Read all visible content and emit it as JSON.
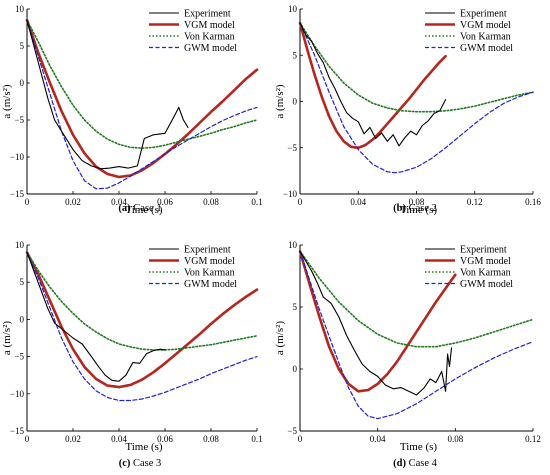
{
  "legend_labels": [
    "Experiment",
    "VGM model",
    "Von Karman",
    "GWM model"
  ],
  "series_colors": {
    "Experiment": "#000000",
    "VGM model": "#b5261e",
    "Von Karman": "#1f7a1f",
    "GWM model": "#1f1fd6"
  },
  "chart_data": [
    {
      "type": "line",
      "panel_label": "(a)",
      "caption": "Case 1",
      "xlabel": "Time (s)",
      "ylabel": "a (m/s²)",
      "xlim": [
        0,
        0.1
      ],
      "ylim": [
        -15,
        10
      ],
      "xticks": [
        0,
        0.02,
        0.04,
        0.06,
        0.08,
        0.1
      ],
      "xtick_labels": [
        "0",
        "0.02",
        "0.04",
        "0.06",
        "0.08",
        "0.1"
      ],
      "yticks": [
        -15,
        -10,
        -5,
        0,
        5,
        10
      ],
      "ytick_labels": [
        "−15",
        "−10",
        "−5",
        "0",
        "5",
        "10"
      ],
      "legend": "top-right",
      "series": [
        {
          "name": "Experiment",
          "style": "solid",
          "x": [
            0,
            0.003,
            0.006,
            0.009,
            0.012,
            0.016,
            0.02,
            0.024,
            0.028,
            0.032,
            0.036,
            0.04,
            0.044,
            0.048,
            0.051,
            0.055,
            0.06,
            0.064,
            0.066,
            0.068,
            0.07
          ],
          "y": [
            8.5,
            5,
            1.5,
            -2,
            -5,
            -7,
            -9,
            -10.5,
            -11.2,
            -11.6,
            -11.5,
            -11.3,
            -11.5,
            -11.2,
            -7.5,
            -7,
            -6.8,
            -4.5,
            -3.3,
            -5,
            -6
          ]
        },
        {
          "name": "VGM model",
          "style": "solid-thick",
          "x": [
            0,
            0.005,
            0.01,
            0.015,
            0.02,
            0.025,
            0.03,
            0.035,
            0.04,
            0.045,
            0.05,
            0.055,
            0.06,
            0.065,
            0.07,
            0.075,
            0.08,
            0.085,
            0.09,
            0.095,
            0.1
          ],
          "y": [
            8.5,
            4,
            0,
            -3.8,
            -7,
            -9.5,
            -11.3,
            -12.3,
            -12.7,
            -12.5,
            -11.8,
            -10.8,
            -9.6,
            -8.3,
            -6.9,
            -5.4,
            -3.9,
            -2.5,
            -1,
            0.5,
            1.8
          ]
        },
        {
          "name": "Von Karman",
          "style": "dotted",
          "x": [
            0,
            0.005,
            0.01,
            0.015,
            0.02,
            0.025,
            0.03,
            0.035,
            0.04,
            0.045,
            0.05,
            0.055,
            0.06,
            0.065,
            0.07,
            0.075,
            0.08,
            0.085,
            0.09,
            0.095,
            0.1
          ],
          "y": [
            8.5,
            5.5,
            2.3,
            -0.5,
            -3,
            -5,
            -6.5,
            -7.6,
            -8.3,
            -8.7,
            -8.8,
            -8.7,
            -8.4,
            -8,
            -7.6,
            -7.2,
            -6.8,
            -6.3,
            -5.9,
            -5.4,
            -5
          ]
        },
        {
          "name": "GWM model",
          "style": "dashed",
          "x": [
            0,
            0.005,
            0.01,
            0.015,
            0.02,
            0.025,
            0.03,
            0.035,
            0.04,
            0.045,
            0.05,
            0.055,
            0.06,
            0.065,
            0.07,
            0.075,
            0.08,
            0.085,
            0.09,
            0.095,
            0.1
          ],
          "y": [
            8.5,
            3.5,
            -1.5,
            -6.5,
            -10.5,
            -13.2,
            -14.3,
            -14.2,
            -13.5,
            -12.6,
            -11.6,
            -10.6,
            -9.6,
            -8.6,
            -7.7,
            -6.8,
            -5.9,
            -5.1,
            -4.4,
            -3.8,
            -3.3
          ]
        }
      ]
    },
    {
      "type": "line",
      "panel_label": "(b)",
      "caption": "Case 2",
      "xlabel": "Time (s)",
      "ylabel": "a (m/s²)",
      "xlim": [
        0,
        0.16
      ],
      "ylim": [
        -10,
        10
      ],
      "xticks": [
        0,
        0.04,
        0.08,
        0.12,
        0.16
      ],
      "xtick_labels": [
        "0",
        "0.04",
        "0.08",
        "0.12",
        "0.16"
      ],
      "yticks": [
        -10,
        -5,
        0,
        5,
        10
      ],
      "ytick_labels": [
        "−10",
        "−5",
        "0",
        "5",
        "10"
      ],
      "legend": "top-right",
      "series": [
        {
          "name": "Experiment",
          "style": "solid",
          "x": [
            0,
            0.004,
            0.008,
            0.012,
            0.016,
            0.02,
            0.024,
            0.028,
            0.032,
            0.036,
            0.04,
            0.044,
            0.048,
            0.052,
            0.056,
            0.06,
            0.064,
            0.068,
            0.072,
            0.076,
            0.08,
            0.084,
            0.088,
            0.092,
            0.096,
            0.1
          ],
          "y": [
            8.5,
            7.2,
            6.5,
            5.2,
            4.2,
            2.6,
            1.4,
            0,
            -1.2,
            -1.8,
            -2.2,
            -3.5,
            -2.8,
            -4,
            -3.4,
            -4.3,
            -3.6,
            -4.8,
            -3.9,
            -3.2,
            -3.6,
            -2.6,
            -2.1,
            -1.3,
            -1,
            0.2
          ]
        },
        {
          "name": "VGM model",
          "style": "solid-thick",
          "x": [
            0,
            0.005,
            0.01,
            0.015,
            0.02,
            0.025,
            0.03,
            0.035,
            0.04,
            0.045,
            0.05,
            0.055,
            0.06,
            0.065,
            0.07,
            0.075,
            0.08,
            0.085,
            0.09,
            0.095,
            0.1
          ],
          "y": [
            8.5,
            5.6,
            2.9,
            0.5,
            -1.6,
            -3.2,
            -4.3,
            -4.9,
            -5,
            -4.7,
            -4.1,
            -3.3,
            -2.4,
            -1.5,
            -0.6,
            0.3,
            1.3,
            2.3,
            3.2,
            4.1,
            4.9
          ]
        },
        {
          "name": "Von Karman",
          "style": "dotted",
          "x": [
            0,
            0.01,
            0.02,
            0.03,
            0.04,
            0.05,
            0.06,
            0.07,
            0.08,
            0.09,
            0.1,
            0.11,
            0.12,
            0.13,
            0.14,
            0.15,
            0.16
          ],
          "y": [
            8.5,
            6,
            3.8,
            2,
            0.7,
            -0.2,
            -0.7,
            -1,
            -1.1,
            -1.1,
            -1,
            -0.8,
            -0.5,
            -0.1,
            0.3,
            0.7,
            1
          ]
        },
        {
          "name": "GWM model",
          "style": "dashed",
          "x": [
            0,
            0.01,
            0.02,
            0.03,
            0.04,
            0.05,
            0.06,
            0.065,
            0.07,
            0.08,
            0.09,
            0.1,
            0.11,
            0.12,
            0.13,
            0.14,
            0.15,
            0.16
          ],
          "y": [
            8.5,
            5,
            1,
            -2.7,
            -5.2,
            -6.8,
            -7.6,
            -7.7,
            -7.6,
            -7.1,
            -6.2,
            -5,
            -3.7,
            -2.4,
            -1.2,
            -0.2,
            0.5,
            1
          ]
        }
      ]
    },
    {
      "type": "line",
      "panel_label": "(c)",
      "caption": "Case 3",
      "xlabel": "Time (s)",
      "ylabel": "a (m/s²)",
      "xlim": [
        0,
        0.1
      ],
      "ylim": [
        -15,
        10
      ],
      "xticks": [
        0,
        0.02,
        0.04,
        0.06,
        0.08,
        0.1
      ],
      "xtick_labels": [
        "0",
        "0.02",
        "0.04",
        "0.06",
        "0.08",
        "0.1"
      ],
      "yticks": [
        -15,
        -10,
        -5,
        0,
        5,
        10
      ],
      "ytick_labels": [
        "−15",
        "−10",
        "−5",
        "0",
        "5",
        "10"
      ],
      "legend": "top-right",
      "series": [
        {
          "name": "Experiment",
          "style": "solid",
          "x": [
            0,
            0.003,
            0.006,
            0.009,
            0.012,
            0.016,
            0.02,
            0.024,
            0.028,
            0.031,
            0.034,
            0.037,
            0.04,
            0.043,
            0.046,
            0.049,
            0.052,
            0.055,
            0.058,
            0.06
          ],
          "y": [
            9,
            6.5,
            4,
            1.5,
            -0.5,
            -1.5,
            -2.5,
            -3.3,
            -5,
            -6.3,
            -7.5,
            -8.2,
            -8.3,
            -7.5,
            -5.8,
            -5.9,
            -4.6,
            -4.2,
            -4,
            -4.1
          ]
        },
        {
          "name": "VGM model",
          "style": "solid-thick",
          "x": [
            0,
            0.005,
            0.01,
            0.015,
            0.02,
            0.025,
            0.03,
            0.035,
            0.04,
            0.045,
            0.05,
            0.055,
            0.06,
            0.065,
            0.07,
            0.075,
            0.08,
            0.085,
            0.09,
            0.095,
            0.1
          ],
          "y": [
            9,
            6,
            2.5,
            -1,
            -4,
            -6.4,
            -8,
            -8.9,
            -9.1,
            -8.8,
            -8.1,
            -7.1,
            -5.9,
            -4.6,
            -3.3,
            -2,
            -0.6,
            0.7,
            1.9,
            3,
            4
          ]
        },
        {
          "name": "Von Karman",
          "style": "dotted",
          "x": [
            0,
            0.005,
            0.01,
            0.015,
            0.02,
            0.025,
            0.03,
            0.035,
            0.04,
            0.045,
            0.05,
            0.055,
            0.06,
            0.065,
            0.07,
            0.075,
            0.08,
            0.085,
            0.09,
            0.095,
            0.1
          ],
          "y": [
            9,
            6.5,
            4.3,
            2.4,
            0.8,
            -0.6,
            -1.7,
            -2.6,
            -3.3,
            -3.7,
            -4,
            -4.1,
            -4.1,
            -4,
            -3.8,
            -3.6,
            -3.4,
            -3.1,
            -2.8,
            -2.5,
            -2.2
          ]
        },
        {
          "name": "GWM model",
          "style": "dashed",
          "x": [
            0,
            0.005,
            0.01,
            0.015,
            0.02,
            0.025,
            0.03,
            0.035,
            0.04,
            0.045,
            0.05,
            0.055,
            0.06,
            0.065,
            0.07,
            0.075,
            0.08,
            0.085,
            0.09,
            0.095,
            0.1
          ],
          "y": [
            9,
            5.5,
            1.5,
            -2.5,
            -5.7,
            -8,
            -9.6,
            -10.5,
            -10.9,
            -10.9,
            -10.7,
            -10.3,
            -9.8,
            -9.2,
            -8.6,
            -8,
            -7.3,
            -6.7,
            -6.1,
            -5.5,
            -5
          ]
        }
      ]
    },
    {
      "type": "line",
      "panel_label": "(d)",
      "caption": "Case 4",
      "xlabel": "Time (s)",
      "ylabel": "a (m/s²)",
      "xlim": [
        0,
        0.12
      ],
      "ylim": [
        -5,
        10
      ],
      "xticks": [
        0,
        0.04,
        0.08,
        0.12
      ],
      "xtick_labels": [
        "0",
        "0.04",
        "0.08",
        "0.12"
      ],
      "yticks": [
        -5,
        0,
        5,
        10
      ],
      "ytick_labels": [
        "−5",
        "0",
        "5",
        "10"
      ],
      "legend": "top-right",
      "series": [
        {
          "name": "Experiment",
          "style": "solid",
          "x": [
            0,
            0.003,
            0.006,
            0.009,
            0.012,
            0.016,
            0.02,
            0.024,
            0.028,
            0.032,
            0.036,
            0.04,
            0.044,
            0.048,
            0.052,
            0.056,
            0.06,
            0.064,
            0.067,
            0.07,
            0.073,
            0.075,
            0.076,
            0.077,
            0.078
          ],
          "y": [
            9.5,
            8.7,
            7.9,
            6.9,
            5.8,
            5.3,
            4.2,
            2.7,
            1.5,
            0.4,
            -0.2,
            -0.6,
            -1.3,
            -1.6,
            -1.5,
            -1.8,
            -2.1,
            -1.5,
            -0.8,
            -1.1,
            -0.2,
            -1.8,
            1.2,
            0.2,
            1.7
          ]
        },
        {
          "name": "VGM model",
          "style": "solid-thick",
          "x": [
            0,
            0.005,
            0.01,
            0.015,
            0.02,
            0.025,
            0.03,
            0.035,
            0.04,
            0.045,
            0.05,
            0.055,
            0.06,
            0.065,
            0.07,
            0.075,
            0.08
          ],
          "y": [
            9.5,
            6.8,
            4.2,
            1.8,
            0,
            -1.2,
            -1.8,
            -1.7,
            -1.2,
            -0.4,
            0.6,
            1.8,
            3,
            4.2,
            5.4,
            6.5,
            7.6
          ]
        },
        {
          "name": "Von Karman",
          "style": "dotted",
          "x": [
            0,
            0.01,
            0.02,
            0.03,
            0.04,
            0.05,
            0.06,
            0.07,
            0.08,
            0.09,
            0.1,
            0.11,
            0.12
          ],
          "y": [
            9.5,
            7.3,
            5.4,
            3.9,
            2.8,
            2.1,
            1.8,
            1.8,
            2.1,
            2.5,
            3,
            3.5,
            4
          ]
        },
        {
          "name": "GWM model",
          "style": "dashed",
          "x": [
            0,
            0.01,
            0.02,
            0.025,
            0.03,
            0.035,
            0.04,
            0.05,
            0.06,
            0.07,
            0.08,
            0.09,
            0.1,
            0.11,
            0.12
          ],
          "y": [
            9.5,
            4.8,
            0.5,
            -1.5,
            -3,
            -3.8,
            -4,
            -3.6,
            -2.8,
            -1.8,
            -0.8,
            0.1,
            0.9,
            1.6,
            2.2
          ]
        }
      ]
    }
  ]
}
